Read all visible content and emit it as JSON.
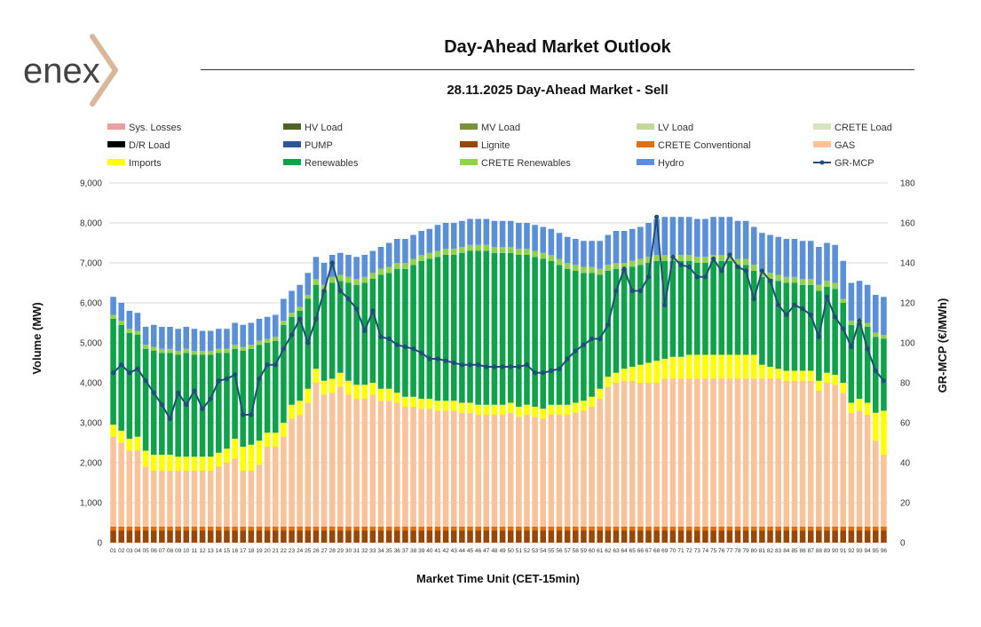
{
  "brand": {
    "logo_text": "enex"
  },
  "header": {
    "title": "Day-Ahead Market Outlook",
    "subtitle": "28.11.2025  Day-Ahead Market - Sell"
  },
  "chart_data": {
    "type": "bar",
    "stacked": true,
    "title": "Day-Ahead Market Outlook",
    "subtitle": "28.11.2025  Day-Ahead Market - Sell",
    "xlabel": "Market Time Unit (CET-15min)",
    "ylabel": "Volume (MW)",
    "y2label": "GR-MCP (€/MWh)",
    "ylim": [
      0,
      9000
    ],
    "y_ticks": [
      0,
      1000,
      2000,
      3000,
      4000,
      5000,
      6000,
      7000,
      8000,
      9000
    ],
    "y_tick_labels": [
      "0",
      "1,000",
      "2,000",
      "3,000",
      "4,000",
      "5,000",
      "6,000",
      "7,000",
      "8,000",
      "9,000"
    ],
    "y2lim": [
      0,
      180
    ],
    "y2_ticks": [
      0,
      20,
      40,
      60,
      80,
      100,
      120,
      140,
      160,
      180
    ],
    "y2_tick_labels": [
      "0",
      "20",
      "40",
      "60",
      "80",
      "100",
      "120",
      "140",
      "160",
      "180"
    ],
    "grid": true,
    "legend_position": "top",
    "categories": [
      "01",
      "02",
      "03",
      "04",
      "05",
      "06",
      "07",
      "08",
      "09",
      "10",
      "11",
      "12",
      "13",
      "14",
      "15",
      "16",
      "17",
      "18",
      "19",
      "20",
      "21",
      "22",
      "23",
      "24",
      "25",
      "26",
      "27",
      "28",
      "29",
      "30",
      "31",
      "32",
      "33",
      "34",
      "35",
      "36",
      "37",
      "38",
      "39",
      "40",
      "41",
      "42",
      "43",
      "44",
      "45",
      "46",
      "47",
      "48",
      "49",
      "50",
      "51",
      "52",
      "53",
      "54",
      "55",
      "56",
      "57",
      "58",
      "59",
      "60",
      "61",
      "62",
      "63",
      "64",
      "65",
      "66",
      "67",
      "68",
      "69",
      "70",
      "71",
      "72",
      "73",
      "74",
      "75",
      "76",
      "77",
      "78",
      "79",
      "80",
      "81",
      "82",
      "83",
      "84",
      "85",
      "86",
      "87",
      "88",
      "89",
      "90",
      "91",
      "92",
      "93",
      "94",
      "95",
      "96"
    ],
    "legend": [
      {
        "name": "Sys. Losses",
        "color": "#e8a0a0"
      },
      {
        "name": "HV Load",
        "color": "#4f6228"
      },
      {
        "name": "MV Load",
        "color": "#77933c"
      },
      {
        "name": "LV Load",
        "color": "#c3d69b"
      },
      {
        "name": "CRETE Load",
        "color": "#d7e4bd"
      },
      {
        "name": "D/R Load",
        "color": "#000000"
      },
      {
        "name": "PUMP",
        "color": "#2e5597"
      },
      {
        "name": "Lignite",
        "color": "#974706"
      },
      {
        "name": "CRETE Conventional",
        "color": "#e46c0a"
      },
      {
        "name": "GAS",
        "color": "#f8c39a"
      },
      {
        "name": "Imports",
        "color": "#ffff00"
      },
      {
        "name": "Renewables",
        "color": "#0fa24b"
      },
      {
        "name": "CRETE Renewables",
        "color": "#92d050"
      },
      {
        "name": "Hydro",
        "color": "#5b8fd6"
      },
      {
        "name": "GR-MCP",
        "color": "#1f4e79",
        "kind": "line"
      }
    ],
    "series": [
      {
        "name": "Lignite",
        "color": "#974706",
        "values": [
          300,
          300,
          300,
          300,
          300,
          300,
          300,
          300,
          300,
          300,
          300,
          300,
          300,
          300,
          300,
          300,
          300,
          300,
          300,
          300,
          300,
          300,
          300,
          300,
          300,
          300,
          300,
          300,
          300,
          300,
          300,
          300,
          300,
          300,
          300,
          300,
          300,
          300,
          300,
          300,
          300,
          300,
          300,
          300,
          300,
          300,
          300,
          300,
          300,
          300,
          300,
          300,
          300,
          300,
          300,
          300,
          300,
          300,
          300,
          300,
          300,
          300,
          300,
          300,
          300,
          300,
          300,
          300,
          300,
          300,
          300,
          300,
          300,
          300,
          300,
          300,
          300,
          300,
          300,
          300,
          300,
          300,
          300,
          300,
          300,
          300,
          300,
          300,
          300,
          300,
          300,
          300,
          300,
          300,
          300,
          300
        ]
      },
      {
        "name": "CRETE Conventional",
        "color": "#e46c0a",
        "values": [
          100,
          100,
          100,
          100,
          100,
          100,
          100,
          100,
          100,
          100,
          100,
          100,
          100,
          100,
          100,
          100,
          100,
          100,
          100,
          100,
          100,
          100,
          100,
          100,
          100,
          100,
          100,
          100,
          100,
          100,
          100,
          100,
          100,
          100,
          100,
          100,
          100,
          100,
          100,
          100,
          100,
          100,
          100,
          100,
          100,
          100,
          100,
          100,
          100,
          100,
          100,
          100,
          100,
          100,
          100,
          100,
          100,
          100,
          100,
          100,
          100,
          100,
          100,
          100,
          100,
          100,
          100,
          100,
          100,
          100,
          100,
          100,
          100,
          100,
          100,
          100,
          100,
          100,
          100,
          100,
          100,
          100,
          100,
          100,
          100,
          100,
          100,
          100,
          100,
          100,
          100,
          100,
          100,
          100,
          100,
          100
        ]
      },
      {
        "name": "GAS",
        "color": "#f8c39a",
        "values": [
          2250,
          2100,
          1900,
          1900,
          1500,
          1400,
          1400,
          1400,
          1400,
          1400,
          1400,
          1400,
          1400,
          1500,
          1600,
          1700,
          1400,
          1400,
          1550,
          2000,
          2000,
          2250,
          2700,
          2800,
          3100,
          3600,
          3300,
          3350,
          3500,
          3300,
          3200,
          3200,
          3300,
          3150,
          3150,
          3100,
          3000,
          3000,
          2950,
          2950,
          2900,
          2900,
          2900,
          2850,
          2850,
          2800,
          2800,
          2800,
          2800,
          2850,
          2750,
          2800,
          2750,
          2700,
          2800,
          2800,
          2800,
          2850,
          2900,
          3000,
          3200,
          3500,
          3600,
          3650,
          3650,
          3600,
          3600,
          3600,
          3700,
          3700,
          3700,
          3700,
          3700,
          3700,
          3700,
          3700,
          3700,
          3700,
          3700,
          3700,
          3700,
          3700,
          3700,
          3650,
          3650,
          3650,
          3650,
          3400,
          3600,
          3550,
          3350,
          2850,
          2900,
          2800,
          2150,
          1800
        ]
      },
      {
        "name": "Imports",
        "color": "#ffff00",
        "values": [
          300,
          300,
          300,
          350,
          400,
          400,
          400,
          400,
          350,
          350,
          350,
          350,
          350,
          350,
          350,
          500,
          600,
          650,
          600,
          350,
          350,
          350,
          350,
          350,
          350,
          350,
          350,
          350,
          350,
          350,
          350,
          350,
          300,
          300,
          300,
          250,
          250,
          250,
          250,
          250,
          250,
          250,
          250,
          250,
          250,
          250,
          250,
          250,
          250,
          250,
          250,
          250,
          250,
          250,
          250,
          250,
          250,
          250,
          250,
          250,
          250,
          250,
          250,
          300,
          350,
          450,
          500,
          550,
          500,
          550,
          550,
          600,
          600,
          600,
          600,
          600,
          600,
          600,
          600,
          600,
          350,
          300,
          250,
          250,
          250,
          250,
          250,
          250,
          250,
          250,
          250,
          250,
          300,
          300,
          700,
          1100
        ]
      },
      {
        "name": "Renewables",
        "color": "#0fa24b",
        "values": [
          2650,
          2650,
          2650,
          2550,
          2550,
          2600,
          2550,
          2550,
          2550,
          2600,
          2550,
          2550,
          2550,
          2500,
          2400,
          2250,
          2400,
          2400,
          2400,
          2250,
          2300,
          2450,
          2200,
          2250,
          2250,
          2100,
          2250,
          2400,
          2300,
          2450,
          2500,
          2550,
          2600,
          2850,
          2900,
          3100,
          3200,
          3300,
          3450,
          3500,
          3600,
          3650,
          3650,
          3750,
          3800,
          3850,
          3850,
          3800,
          3800,
          3750,
          3800,
          3750,
          3750,
          3750,
          3600,
          3500,
          3400,
          3300,
          3200,
          3100,
          2850,
          2650,
          2600,
          2500,
          2500,
          2500,
          2500,
          2500,
          2450,
          2400,
          2400,
          2350,
          2300,
          2300,
          2350,
          2350,
          2350,
          2250,
          2250,
          2100,
          2200,
          2200,
          2200,
          2200,
          2200,
          2150,
          2150,
          2250,
          2150,
          2150,
          2000,
          1950,
          1900,
          1900,
          1900,
          1800
        ]
      },
      {
        "name": "CRETE Renewables",
        "color": "#92d050",
        "values": [
          100,
          100,
          100,
          100,
          100,
          100,
          100,
          100,
          100,
          100,
          100,
          100,
          100,
          100,
          100,
          100,
          100,
          100,
          100,
          100,
          100,
          100,
          100,
          100,
          100,
          150,
          150,
          150,
          150,
          150,
          150,
          150,
          150,
          150,
          150,
          150,
          150,
          150,
          150,
          150,
          150,
          150,
          150,
          150,
          150,
          150,
          150,
          150,
          150,
          150,
          150,
          150,
          150,
          150,
          150,
          150,
          150,
          150,
          150,
          150,
          150,
          150,
          150,
          150,
          150,
          150,
          150,
          150,
          150,
          150,
          150,
          150,
          150,
          150,
          150,
          150,
          150,
          150,
          150,
          150,
          150,
          150,
          150,
          150,
          150,
          150,
          150,
          150,
          150,
          150,
          100,
          100,
          100,
          100,
          100,
          100
        ]
      },
      {
        "name": "Hydro",
        "color": "#5b8fd6",
        "values": [
          450,
          450,
          450,
          450,
          450,
          550,
          550,
          550,
          550,
          550,
          550,
          500,
          500,
          500,
          500,
          550,
          550,
          550,
          550,
          550,
          550,
          550,
          550,
          550,
          550,
          550,
          550,
          550,
          550,
          550,
          550,
          550,
          550,
          550,
          600,
          600,
          600,
          600,
          600,
          600,
          650,
          650,
          650,
          650,
          650,
          650,
          650,
          650,
          650,
          650,
          650,
          650,
          650,
          650,
          650,
          650,
          650,
          650,
          650,
          650,
          700,
          750,
          800,
          800,
          800,
          800,
          850,
          900,
          950,
          950,
          950,
          950,
          950,
          950,
          950,
          950,
          950,
          950,
          950,
          950,
          950,
          950,
          950,
          950,
          950,
          950,
          950,
          950,
          950,
          950,
          950,
          950,
          950,
          950,
          950,
          950
        ]
      },
      {
        "name": "GR-MCP",
        "color": "#1f4e79",
        "kind": "line",
        "axis": "y2",
        "values": [
          85,
          89,
          85,
          87,
          81,
          75,
          69,
          62,
          75,
          69,
          76,
          67,
          72,
          81,
          82,
          84,
          64,
          64,
          82,
          89,
          89,
          97,
          104,
          112,
          100,
          112,
          126,
          140,
          126,
          122,
          117,
          106,
          116,
          103,
          102,
          99,
          98,
          97,
          95,
          92,
          92,
          91,
          90,
          89,
          89,
          89,
          88,
          88,
          88,
          88,
          88,
          89,
          85,
          85,
          86,
          87,
          92,
          96,
          99,
          102,
          102,
          109,
          126,
          137,
          126,
          126,
          133,
          163,
          119,
          143,
          139,
          138,
          133,
          133,
          142,
          136,
          144,
          138,
          136,
          122,
          136,
          131,
          119,
          114,
          119,
          117,
          114,
          103,
          123,
          113,
          107,
          98,
          111,
          97,
          86,
          81
        ]
      }
    ]
  }
}
